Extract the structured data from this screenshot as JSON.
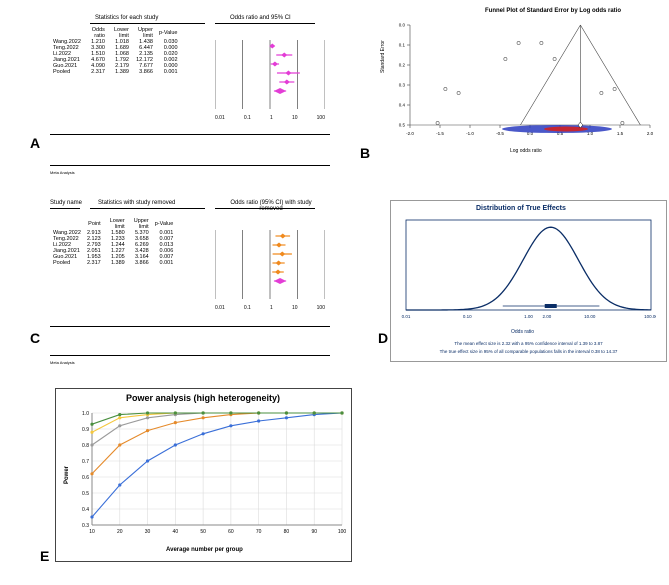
{
  "panelA": {
    "label": "A",
    "header_stats": "Statistics for each study",
    "header_forest": "Odds ratio and 95% CI",
    "cols": [
      "Odds ratio",
      "Lower limit",
      "Upper limit",
      "p-Value"
    ],
    "rows": [
      {
        "name": "Wang.2022",
        "or": 1.21,
        "lo": 1.018,
        "hi": 1.438,
        "p": "0.030"
      },
      {
        "name": "Teng.2022",
        "or": 3.3,
        "lo": 1.689,
        "hi": 6.447,
        "p": "0.000"
      },
      {
        "name": "Li.2022",
        "or": 1.51,
        "lo": 1.068,
        "hi": 2.135,
        "p": "0.020"
      },
      {
        "name": "Jiang.2021",
        "or": 4.67,
        "lo": 1.792,
        "hi": 12.172,
        "p": "0.002"
      },
      {
        "name": "Guo.2021",
        "or": 4.09,
        "lo": 2.179,
        "hi": 7.677,
        "p": "0.000"
      },
      {
        "name": "Pooled",
        "or": 2.317,
        "lo": 1.389,
        "hi": 3.866,
        "p": "0.001"
      }
    ],
    "ticks": [
      "0.01",
      "0.1",
      "1",
      "10",
      "100"
    ],
    "marker_color": "#e33dd6",
    "footer": "Meta Analysis"
  },
  "panelB": {
    "label": "B",
    "title": "Funnel Plot of Standard Error by Log odds ratio",
    "xlabel": "Log odds ratio",
    "ylabel": "Standard Error",
    "xticks": [
      -2.0,
      -1.5,
      -1.0,
      -0.5,
      0.0,
      0.5,
      1.0,
      1.5,
      2.0
    ],
    "yticks": [
      0.0,
      0.1,
      0.2,
      0.3,
      0.4,
      0.5
    ],
    "line_color": "#000",
    "red_color": "#d32121",
    "blue_color": "#2a3bc0",
    "points": [
      {
        "x": 0.19,
        "y": 0.09
      },
      {
        "x": 1.19,
        "y": 0.34
      },
      {
        "x": 0.41,
        "y": 0.17
      },
      {
        "x": 1.54,
        "y": 0.49
      },
      {
        "x": 1.41,
        "y": 0.32
      },
      {
        "x": -0.19,
        "y": 0.09
      },
      {
        "x": -1.19,
        "y": 0.34
      },
      {
        "x": -0.41,
        "y": 0.17
      },
      {
        "x": -1.54,
        "y": 0.49
      },
      {
        "x": -1.41,
        "y": 0.32
      }
    ]
  },
  "panelC": {
    "label": "C",
    "study_hdr": "Study name",
    "header_stats": "Statistics with study removed",
    "header_forest": "Odds ratio (95% CI) with study removed",
    "cols": [
      "Point",
      "Lower limit",
      "Upper limit",
      "p-Value"
    ],
    "rows": [
      {
        "name": "Wang.2022",
        "or": 2.913,
        "lo": 1.58,
        "hi": 5.37,
        "p": "0.001"
      },
      {
        "name": "Teng.2022",
        "or": 2.123,
        "lo": 1.233,
        "hi": 3.658,
        "p": "0.007"
      },
      {
        "name": "Li.2022",
        "or": 2.793,
        "lo": 1.244,
        "hi": 6.269,
        "p": "0.013"
      },
      {
        "name": "Jiang.2021",
        "or": 2.051,
        "lo": 1.227,
        "hi": 3.428,
        "p": "0.006"
      },
      {
        "name": "Guo.2021",
        "or": 1.953,
        "lo": 1.205,
        "hi": 3.164,
        "p": "0.007"
      },
      {
        "name": "Pooled",
        "or": 2.317,
        "lo": 1.389,
        "hi": 3.866,
        "p": "0.001"
      }
    ],
    "ticks": [
      "0.01",
      "0.1",
      "1",
      "10",
      "100"
    ],
    "marker_color_row": "#f08a1e",
    "marker_color_pooled": "#e33dd6",
    "footer": "Meta Analysis"
  },
  "panelD": {
    "label": "D",
    "title": "Distribution of True Effects",
    "xlabel": "Odds ratio",
    "xticks": [
      "0.01",
      "0.10",
      "1.00",
      "2.00",
      "10.00",
      "100.00"
    ],
    "line_color": "#0a2d66",
    "caption1": "The mean effect size is 2.32 with a 95% confidence interval of 1.39 to 3.87",
    "caption2": "The true effect size in 95% of all comparable populations falls in the interval 0.38 to 14.37",
    "mean_log": 0.363,
    "sd_log": 0.45
  },
  "panelE": {
    "label": "E",
    "title": "Power analysis (high heterogeneity)",
    "xlabel": "Average number per group",
    "ylabel": "Power",
    "xticks": [
      10,
      20,
      30,
      40,
      50,
      60,
      70,
      80,
      90,
      100
    ],
    "yticks": [
      0.3,
      0.4,
      0.5,
      0.6,
      0.7,
      0.8,
      0.9,
      1.0
    ],
    "grid_color": "#dcdcdc",
    "series": [
      {
        "color": "#3a6fd8",
        "pts": [
          [
            10,
            0.35
          ],
          [
            20,
            0.55
          ],
          [
            30,
            0.7
          ],
          [
            40,
            0.8
          ],
          [
            50,
            0.87
          ],
          [
            60,
            0.92
          ],
          [
            70,
            0.95
          ],
          [
            80,
            0.97
          ],
          [
            90,
            0.99
          ],
          [
            100,
            1.0
          ]
        ]
      },
      {
        "color": "#e58a2a",
        "pts": [
          [
            10,
            0.62
          ],
          [
            20,
            0.8
          ],
          [
            30,
            0.89
          ],
          [
            40,
            0.94
          ],
          [
            50,
            0.97
          ],
          [
            60,
            0.99
          ],
          [
            70,
            1.0
          ],
          [
            80,
            1.0
          ],
          [
            90,
            1.0
          ],
          [
            100,
            1.0
          ]
        ]
      },
      {
        "color": "#9a9a9a",
        "pts": [
          [
            10,
            0.8
          ],
          [
            20,
            0.92
          ],
          [
            30,
            0.97
          ],
          [
            40,
            0.99
          ],
          [
            50,
            1.0
          ],
          [
            60,
            1.0
          ],
          [
            70,
            1.0
          ],
          [
            80,
            1.0
          ],
          [
            90,
            1.0
          ],
          [
            100,
            1.0
          ]
        ]
      },
      {
        "color": "#f4c73e",
        "pts": [
          [
            10,
            0.88
          ],
          [
            20,
            0.97
          ],
          [
            30,
            0.99
          ],
          [
            40,
            1.0
          ],
          [
            50,
            1.0
          ],
          [
            60,
            1.0
          ],
          [
            70,
            1.0
          ],
          [
            80,
            1.0
          ],
          [
            90,
            1.0
          ],
          [
            100,
            1.0
          ]
        ]
      },
      {
        "color": "#4a8f3f",
        "pts": [
          [
            10,
            0.93
          ],
          [
            20,
            0.99
          ],
          [
            30,
            1.0
          ],
          [
            40,
            1.0
          ],
          [
            50,
            1.0
          ],
          [
            60,
            1.0
          ],
          [
            70,
            1.0
          ],
          [
            80,
            1.0
          ],
          [
            90,
            1.0
          ],
          [
            100,
            1.0
          ]
        ]
      }
    ]
  }
}
